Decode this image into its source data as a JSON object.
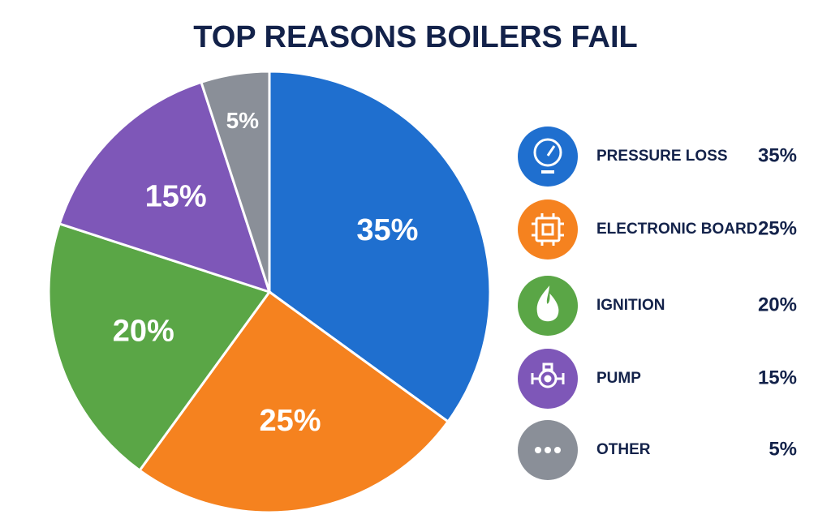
{
  "chart_data": {
    "type": "pie",
    "title": "TOP REASONS BOILERS FAIL",
    "categories": [
      "PRESSURE LOSS",
      "ELECTRONIC BOARD",
      "IGNITION",
      "PUMP",
      "OTHER"
    ],
    "values": [
      35,
      25,
      20,
      15,
      5
    ],
    "value_labels": [
      "35%",
      "25%",
      "20%",
      "15%",
      "5%"
    ],
    "colors": [
      "#1f6fcf",
      "#f5821f",
      "#5aa646",
      "#7e57b8",
      "#8a8f98"
    ]
  }
}
